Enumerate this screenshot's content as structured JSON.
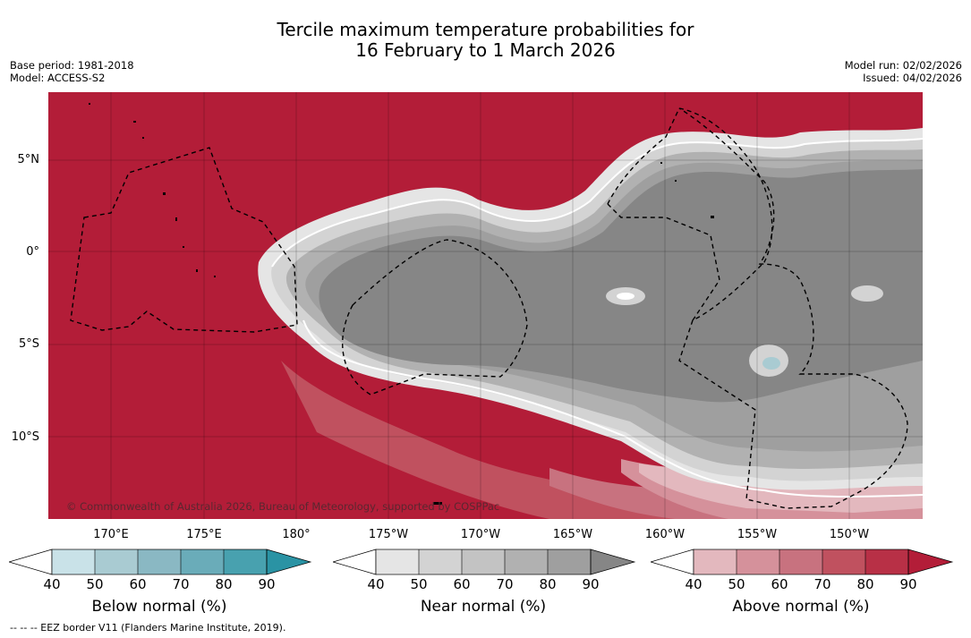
{
  "title": {
    "line1": "Tercile maximum temperature probabilities for",
    "line2": "16 February to 1 March 2026"
  },
  "meta": {
    "base_period": "Base period: 1981-2018",
    "model": "Model: ACCESS-S2",
    "model_run": "Model run: 02/02/2026",
    "issued": "Issued: 04/02/2026"
  },
  "map": {
    "lat_labels": [
      "5°N",
      "0°",
      "5°S",
      "10°S"
    ],
    "lon_labels": [
      "170°E",
      "175°E",
      "180°",
      "175°W",
      "170°W",
      "165°W",
      "160°W",
      "155°W",
      "150°W"
    ],
    "copyright": "© Commonwealth of Australia 2026, Bureau of Meteorology, supported by COSPPac",
    "colors": {
      "above_90": "#b31d38",
      "near_gray": "#868686",
      "land": "#000000"
    }
  },
  "legends": [
    {
      "name": "Below normal (%)",
      "ticks": [
        "40",
        "50",
        "60",
        "70",
        "80",
        "90"
      ],
      "colors": [
        "#ffffff",
        "#c9e2e8",
        "#a9cbd2",
        "#8ab8c3",
        "#6aacb9",
        "#48a1af",
        "#2a93a4"
      ]
    },
    {
      "name": "Near normal (%)",
      "ticks": [
        "40",
        "50",
        "60",
        "70",
        "80",
        "90"
      ],
      "colors": [
        "#ffffff",
        "#e5e5e5",
        "#d3d3d3",
        "#c3c3c3",
        "#b1b1b1",
        "#9f9f9f",
        "#868686"
      ]
    },
    {
      "name": "Above normal (%)",
      "ticks": [
        "40",
        "50",
        "60",
        "70",
        "80",
        "90"
      ],
      "colors": [
        "#ffffff",
        "#e3b8be",
        "#d5919b",
        "#c8727f",
        "#c0515f",
        "#b83046",
        "#b31d38"
      ]
    }
  ],
  "footnote": "--  --  -- EEZ border V11 (Flanders Marine Institute, 2019)."
}
